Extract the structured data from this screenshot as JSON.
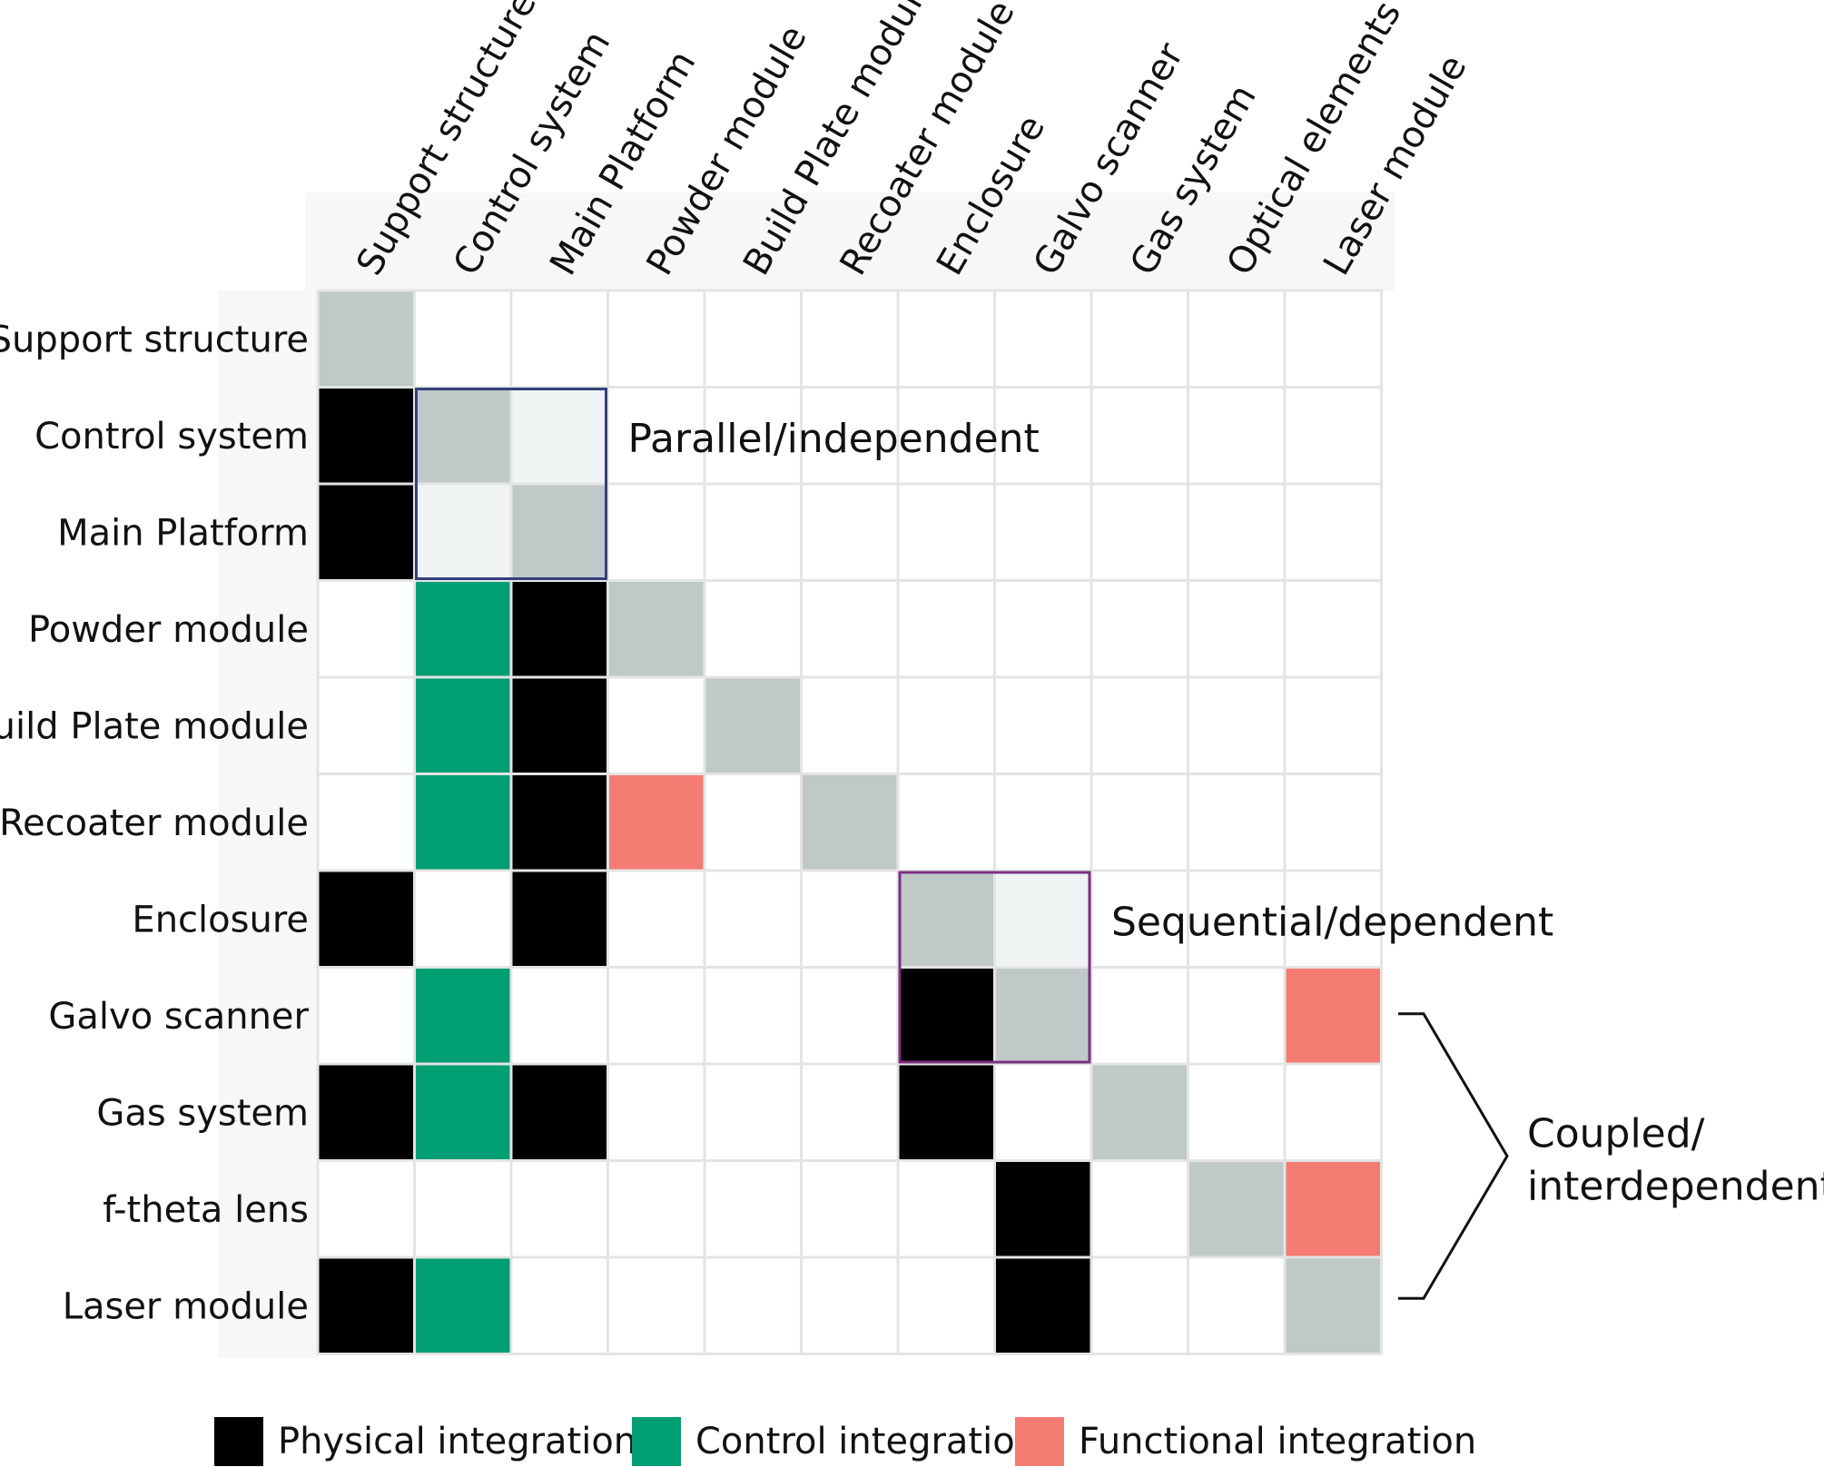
{
  "columns": [
    "Support structure",
    "Control system",
    "Main Platform",
    "Powder module",
    "Build Plate module",
    "Recoater module",
    "Enclosure",
    "Galvo scanner",
    "Gas system",
    "Optical elements",
    "Laser module"
  ],
  "rows": [
    "Support structure",
    "Control system",
    "Main Platform",
    "Powder module",
    "Build Plate module",
    "Recoater module",
    "Enclosure",
    "Galvo scanner",
    "Gas system",
    "f-theta lens",
    "Laser module"
  ],
  "matrix": [
    [
      "G",
      "",
      "",
      "",
      "",
      "",
      "",
      "",
      "",
      "",
      ""
    ],
    [
      "P",
      "G",
      "L",
      "",
      "",
      "",
      "",
      "",
      "",
      "",
      ""
    ],
    [
      "P",
      "L",
      "G",
      "",
      "",
      "",
      "",
      "",
      "",
      "",
      ""
    ],
    [
      "",
      "C",
      "P",
      "G",
      "",
      "",
      "",
      "",
      "",
      "",
      ""
    ],
    [
      "",
      "C",
      "P",
      "",
      "G",
      "",
      "",
      "",
      "",
      "",
      ""
    ],
    [
      "",
      "C",
      "P",
      "F",
      "",
      "G",
      "",
      "",
      "",
      "",
      ""
    ],
    [
      "P",
      "",
      "P",
      "",
      "",
      "",
      "G",
      "L",
      "",
      "",
      ""
    ],
    [
      "",
      "C",
      "",
      "",
      "",
      "",
      "P",
      "G",
      "",
      "",
      "F"
    ],
    [
      "P",
      "C",
      "P",
      "",
      "",
      "",
      "P",
      "",
      "G",
      "",
      ""
    ],
    [
      "",
      "",
      "",
      "",
      "",
      "",
      "",
      "P",
      "",
      "G",
      "F"
    ],
    [
      "P",
      "C",
      "",
      "",
      "",
      "",
      "",
      "P",
      "",
      "",
      "G"
    ]
  ],
  "cell_key": {
    "P": "physical",
    "C": "control",
    "F": "functional",
    "G": "diagonal",
    "L": "light",
    "": "empty"
  },
  "colors": {
    "physical": "#000000",
    "control": "#009e73",
    "functional": "#f47c72",
    "diagonal": "#bfc9c7",
    "light": "#eff3f3",
    "empty": "#ffffff",
    "grid": "#e4e4e4",
    "parallel_box": "#34407c",
    "sequential_box": "#7b2f7f",
    "brace": "#111111",
    "header_band": "#f7f7f7"
  },
  "annotations": {
    "parallel": {
      "label": "Parallel/independent",
      "rows": [
        1,
        2
      ],
      "cols": [
        1,
        2
      ]
    },
    "sequential": {
      "label": "Sequential/dependent",
      "rows": [
        6,
        7
      ],
      "cols": [
        6,
        7
      ]
    },
    "coupled": {
      "label_lines": [
        "Coupled/",
        "interdependent"
      ],
      "rows": [
        7,
        10
      ]
    }
  },
  "legend": [
    {
      "label": "Physical integration",
      "color": "#000000"
    },
    {
      "label": "Control integration",
      "color": "#009e73"
    },
    {
      "label": "Functional integration",
      "color": "#f47c72"
    }
  ]
}
